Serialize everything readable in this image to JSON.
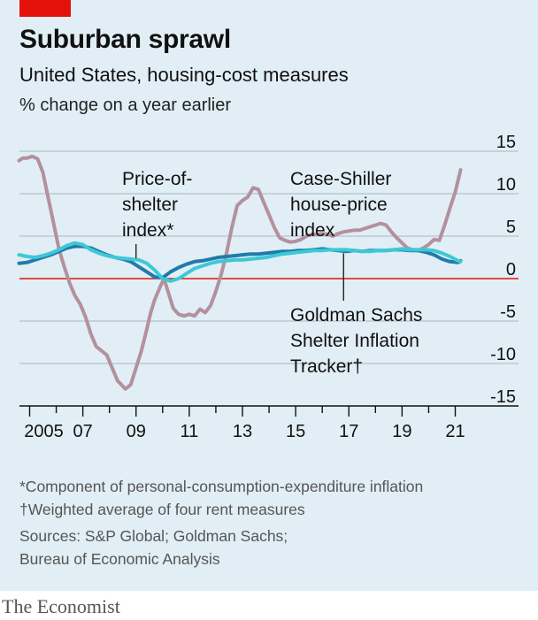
{
  "header": {
    "title": "Suburban sprawl",
    "subtitle": "United States, housing-cost measures",
    "unit": "% change on a year earlier"
  },
  "footer": {
    "note1": "*Component of personal-consumption-expenditure inflation",
    "note2": "†Weighted average of four rent measures",
    "sources1": "Sources: S&P Global; Goldman Sachs;",
    "sources2": "Bureau of Economic Analysis",
    "brand": "The Economist"
  },
  "colors": {
    "panel": "#e1eef5",
    "case_shiller": "#b3919c",
    "goldman": "#1f7bab",
    "price_of_shelter": "#3ec8d6",
    "zero_line": "#e3120b",
    "grid": "#a9b7bf",
    "axis": "#111111"
  },
  "chart_data": {
    "type": "line",
    "ylim": [
      -15,
      15
    ],
    "xlim": [
      2004.5,
      2021.5
    ],
    "yticks": [
      15,
      10,
      5,
      0,
      -5,
      -10,
      -15
    ],
    "ytick_labels": [
      "15",
      "10",
      "5",
      "0",
      "-5",
      "-10",
      "-15"
    ],
    "xticks": [
      2005,
      2007,
      2009,
      2011,
      2013,
      2015,
      2017,
      2019,
      2021
    ],
    "xtick_labels": [
      "2005",
      "07",
      "09",
      "11",
      "13",
      "15",
      "17",
      "19",
      "21"
    ],
    "grid": true,
    "series": [
      {
        "name": "Case-Shiller house-price index",
        "label_lines": [
          "Case-Shiller",
          "house-price",
          "index"
        ],
        "color": "#b3919c",
        "points": [
          [
            2004.6,
            13.9
          ],
          [
            2004.75,
            14.2
          ],
          [
            2004.9,
            14.2
          ],
          [
            2005.1,
            14.4
          ],
          [
            2005.3,
            14.1
          ],
          [
            2005.5,
            12.5
          ],
          [
            2005.7,
            9.5
          ],
          [
            2005.9,
            6.5
          ],
          [
            2006.1,
            3.5
          ],
          [
            2006.3,
            1.4
          ],
          [
            2006.5,
            -0.5
          ],
          [
            2006.7,
            -2
          ],
          [
            2006.9,
            -3
          ],
          [
            2007.1,
            -4.5
          ],
          [
            2007.3,
            -6.5
          ],
          [
            2007.5,
            -8
          ],
          [
            2007.7,
            -8.5
          ],
          [
            2007.9,
            -9
          ],
          [
            2008.1,
            -10.5
          ],
          [
            2008.3,
            -12
          ],
          [
            2008.45,
            -12.5
          ],
          [
            2008.6,
            -13
          ],
          [
            2008.8,
            -12.5
          ],
          [
            2009.0,
            -10.5
          ],
          [
            2009.2,
            -8.5
          ],
          [
            2009.4,
            -6
          ],
          [
            2009.55,
            -4
          ],
          [
            2009.7,
            -2.5
          ],
          [
            2009.9,
            -1
          ],
          [
            2010.05,
            0
          ],
          [
            2010.2,
            -1.5
          ],
          [
            2010.4,
            -3.5
          ],
          [
            2010.6,
            -4.2
          ],
          [
            2010.8,
            -4.4
          ],
          [
            2011.0,
            -4.2
          ],
          [
            2011.2,
            -4.4
          ],
          [
            2011.4,
            -3.6
          ],
          [
            2011.6,
            -4
          ],
          [
            2011.8,
            -3.2
          ],
          [
            2012.0,
            -1.5
          ],
          [
            2012.2,
            0.5
          ],
          [
            2012.4,
            3
          ],
          [
            2012.6,
            6
          ],
          [
            2012.8,
            8.6
          ],
          [
            2013.0,
            9.2
          ],
          [
            2013.2,
            9.6
          ],
          [
            2013.4,
            10.7
          ],
          [
            2013.6,
            10.5
          ],
          [
            2013.8,
            9
          ],
          [
            2014.0,
            7.5
          ],
          [
            2014.2,
            6
          ],
          [
            2014.4,
            4.8
          ],
          [
            2014.6,
            4.5
          ],
          [
            2014.8,
            4.3
          ],
          [
            2015.0,
            4.4
          ],
          [
            2015.2,
            4.6
          ],
          [
            2015.4,
            5
          ],
          [
            2015.6,
            5.2
          ],
          [
            2015.8,
            5.2
          ],
          [
            2016.0,
            5.3
          ],
          [
            2016.2,
            5.2
          ],
          [
            2016.4,
            5.0
          ],
          [
            2016.6,
            5.3
          ],
          [
            2016.8,
            5.5
          ],
          [
            2017.0,
            5.6
          ],
          [
            2017.2,
            5.7
          ],
          [
            2017.4,
            5.7
          ],
          [
            2017.6,
            5.9
          ],
          [
            2017.8,
            6.1
          ],
          [
            2018.0,
            6.3
          ],
          [
            2018.2,
            6.5
          ],
          [
            2018.4,
            6.3
          ],
          [
            2018.6,
            5.5
          ],
          [
            2018.8,
            4.8
          ],
          [
            2019.0,
            4.2
          ],
          [
            2019.2,
            3.6
          ],
          [
            2019.4,
            3.4
          ],
          [
            2019.6,
            3.3
          ],
          [
            2019.8,
            3.6
          ],
          [
            2020.0,
            4.0
          ],
          [
            2020.2,
            4.6
          ],
          [
            2020.4,
            4.5
          ],
          [
            2020.6,
            6.3
          ],
          [
            2020.8,
            8.3
          ],
          [
            2021.0,
            10.2
          ],
          [
            2021.1,
            11.5
          ],
          [
            2021.2,
            12.8
          ]
        ]
      },
      {
        "name": "Goldman Sachs Shelter Inflation Tracker",
        "label_lines": [
          "Goldman Sachs",
          "Shelter Inflation",
          "Tracker†"
        ],
        "color": "#1f7bab",
        "points": [
          [
            2004.6,
            1.8
          ],
          [
            2004.9,
            1.9
          ],
          [
            2005.2,
            2.2
          ],
          [
            2005.5,
            2.5
          ],
          [
            2005.8,
            2.8
          ],
          [
            2006.1,
            3.2
          ],
          [
            2006.4,
            3.6
          ],
          [
            2006.7,
            3.8
          ],
          [
            2007.0,
            3.8
          ],
          [
            2007.3,
            3.6
          ],
          [
            2007.6,
            3.2
          ],
          [
            2007.9,
            2.8
          ],
          [
            2008.2,
            2.5
          ],
          [
            2008.5,
            2.3
          ],
          [
            2008.8,
            2.0
          ],
          [
            2009.1,
            1.4
          ],
          [
            2009.4,
            0.8
          ],
          [
            2009.7,
            0.2
          ],
          [
            2010.0,
            0.1
          ],
          [
            2010.3,
            0.8
          ],
          [
            2010.6,
            1.3
          ],
          [
            2010.9,
            1.7
          ],
          [
            2011.2,
            2.0
          ],
          [
            2011.5,
            2.1
          ],
          [
            2011.8,
            2.3
          ],
          [
            2012.1,
            2.5
          ],
          [
            2012.4,
            2.6
          ],
          [
            2012.7,
            2.7
          ],
          [
            2013.0,
            2.8
          ],
          [
            2013.3,
            2.9
          ],
          [
            2013.6,
            2.9
          ],
          [
            2013.9,
            3.0
          ],
          [
            2014.2,
            3.1
          ],
          [
            2014.5,
            3.2
          ],
          [
            2014.8,
            3.2
          ],
          [
            2015.1,
            3.3
          ],
          [
            2015.4,
            3.3
          ],
          [
            2015.7,
            3.4
          ],
          [
            2016.0,
            3.5
          ],
          [
            2016.3,
            3.4
          ],
          [
            2016.6,
            3.3
          ],
          [
            2016.9,
            3.2
          ],
          [
            2017.2,
            3.3
          ],
          [
            2017.5,
            3.2
          ],
          [
            2017.8,
            3.3
          ],
          [
            2018.1,
            3.3
          ],
          [
            2018.4,
            3.3
          ],
          [
            2018.7,
            3.4
          ],
          [
            2019.0,
            3.4
          ],
          [
            2019.3,
            3.3
          ],
          [
            2019.6,
            3.3
          ],
          [
            2019.9,
            3.1
          ],
          [
            2020.2,
            2.8
          ],
          [
            2020.5,
            2.3
          ],
          [
            2020.8,
            2.0
          ],
          [
            2021.1,
            1.9
          ],
          [
            2021.2,
            2.1
          ]
        ]
      },
      {
        "name": "Price-of-shelter index*",
        "label_lines": [
          "Price-of-",
          "shelter",
          "index*"
        ],
        "color": "#3ec8d6",
        "points": [
          [
            2004.6,
            2.8
          ],
          [
            2004.9,
            2.6
          ],
          [
            2005.2,
            2.5
          ],
          [
            2005.5,
            2.7
          ],
          [
            2005.8,
            3.0
          ],
          [
            2006.1,
            3.4
          ],
          [
            2006.4,
            3.9
          ],
          [
            2006.7,
            4.2
          ],
          [
            2007.0,
            4.0
          ],
          [
            2007.3,
            3.4
          ],
          [
            2007.6,
            3.0
          ],
          [
            2007.9,
            2.7
          ],
          [
            2008.2,
            2.5
          ],
          [
            2008.5,
            2.4
          ],
          [
            2008.8,
            2.3
          ],
          [
            2009.1,
            2.2
          ],
          [
            2009.4,
            1.8
          ],
          [
            2009.7,
            1.0
          ],
          [
            2010.0,
            0.0
          ],
          [
            2010.3,
            -0.3
          ],
          [
            2010.6,
            0.0
          ],
          [
            2010.9,
            0.6
          ],
          [
            2011.2,
            1.2
          ],
          [
            2011.5,
            1.5
          ],
          [
            2011.8,
            1.8
          ],
          [
            2012.1,
            2.0
          ],
          [
            2012.4,
            2.1
          ],
          [
            2012.7,
            2.2
          ],
          [
            2013.0,
            2.2
          ],
          [
            2013.3,
            2.3
          ],
          [
            2013.6,
            2.4
          ],
          [
            2013.9,
            2.5
          ],
          [
            2014.2,
            2.7
          ],
          [
            2014.5,
            2.9
          ],
          [
            2014.8,
            3.0
          ],
          [
            2015.1,
            3.1
          ],
          [
            2015.4,
            3.2
          ],
          [
            2015.7,
            3.3
          ],
          [
            2016.0,
            3.3
          ],
          [
            2016.3,
            3.4
          ],
          [
            2016.6,
            3.4
          ],
          [
            2016.9,
            3.4
          ],
          [
            2017.2,
            3.3
          ],
          [
            2017.5,
            3.2
          ],
          [
            2017.8,
            3.2
          ],
          [
            2018.1,
            3.3
          ],
          [
            2018.4,
            3.3
          ],
          [
            2018.7,
            3.4
          ],
          [
            2019.0,
            3.5
          ],
          [
            2019.3,
            3.4
          ],
          [
            2019.6,
            3.4
          ],
          [
            2019.9,
            3.4
          ],
          [
            2020.2,
            3.3
          ],
          [
            2020.5,
            3.0
          ],
          [
            2020.8,
            2.6
          ],
          [
            2021.1,
            2.1
          ],
          [
            2021.2,
            2.0
          ]
        ]
      }
    ]
  }
}
